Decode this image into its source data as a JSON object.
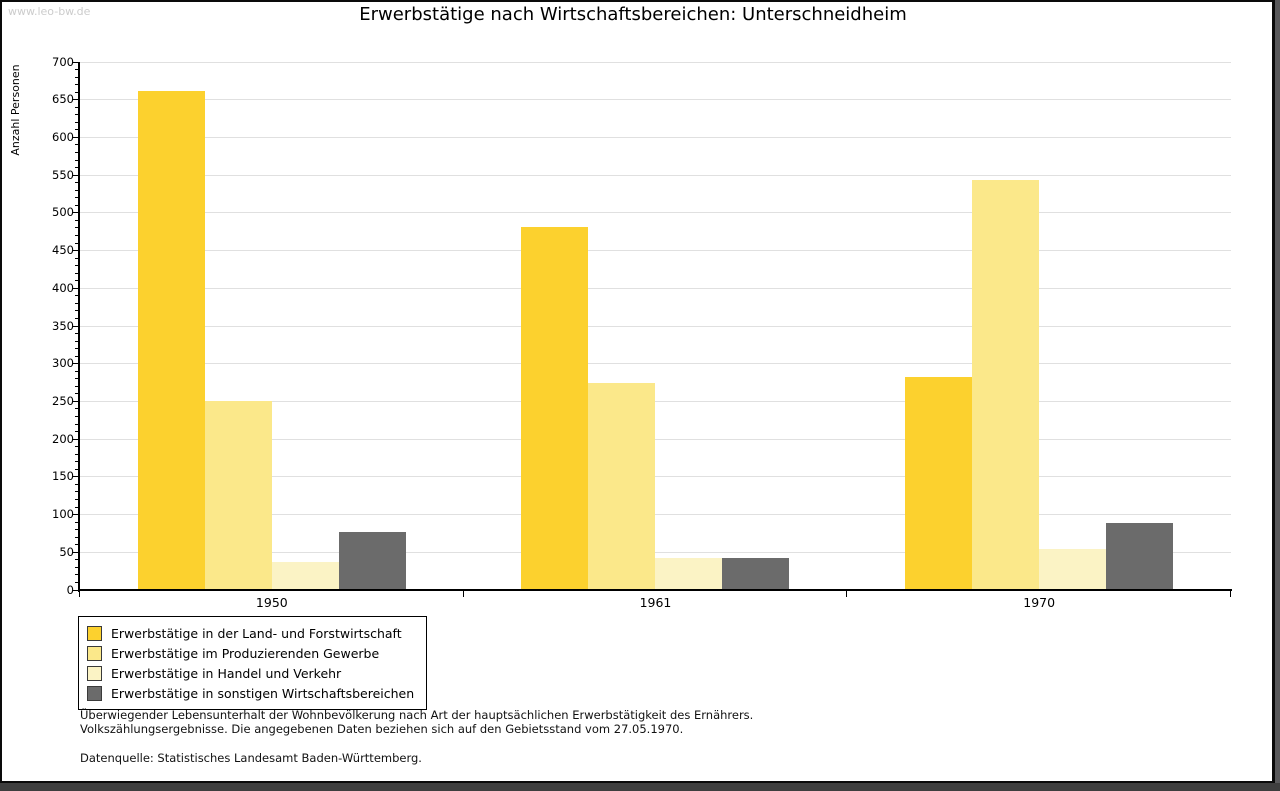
{
  "watermark": "www.leo-bw.de",
  "title": "Erwerbstätige nach Wirtschaftsbereichen: Unterschneidheim",
  "chart_data": {
    "type": "bar",
    "title": "Erwerbstätige nach Wirtschaftsbereichen: Unterschneidheim",
    "xlabel": "",
    "ylabel": "Anzahl Personen",
    "ylim": [
      0,
      700
    ],
    "yticks": [
      0,
      50,
      100,
      150,
      200,
      250,
      300,
      350,
      400,
      450,
      500,
      550,
      600,
      650,
      700
    ],
    "ytick_minor_step": 10,
    "grid": true,
    "gridline_color": "#e0e0e0",
    "legend_position": "bottom-left",
    "categories": [
      "1950",
      "1961",
      "1970"
    ],
    "series": [
      {
        "name": "Erwerbstätige in der Land- und Forstwirtschaft",
        "color": "#fcd12e",
        "values": [
          661,
          481,
          283
        ]
      },
      {
        "name": "Erwerbstätige im Produzierenden Gewerbe",
        "color": "#fbe88a",
        "values": [
          250,
          275,
          543
        ]
      },
      {
        "name": "Erwerbstätige in Handel und Verkehr",
        "color": "#fbf3c5",
        "values": [
          37,
          43,
          54
        ]
      },
      {
        "name": "Erwerbstätige in sonstigen Wirtschaftsbereichen",
        "color": "#6b6b6b",
        "values": [
          77,
          43,
          89
        ]
      }
    ]
  },
  "footnote": {
    "line1": "Überwiegender Lebensunterhalt der Wohnbevölkerung nach Art der hauptsächlichen Erwerbstätigkeit des Ernährers.",
    "line2": "Volkszählungsergebnisse. Die angegebenen Daten beziehen sich auf den Gebietsstand vom 27.05.1970."
  },
  "source": "Datenquelle: Statistisches Landesamt Baden-Württemberg."
}
